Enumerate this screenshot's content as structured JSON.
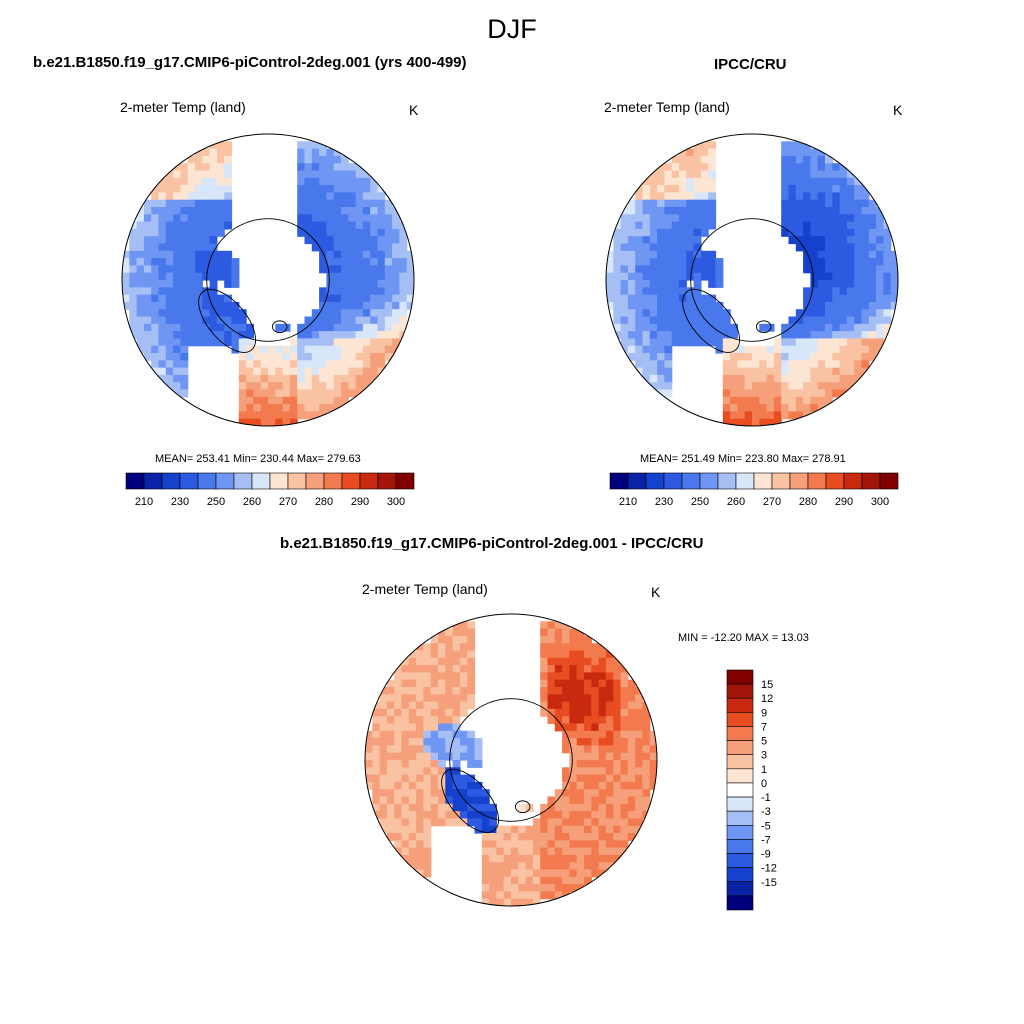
{
  "figure": {
    "season": "DJF",
    "variable": "2-meter Temp (land)",
    "units": "K"
  },
  "panels": {
    "model": {
      "title": "b.e21.B1850.f19_g17.CMIP6-piControl-2deg.001 (yrs 400-499)",
      "stats": "MEAN= 253.41  Min= 230.44  Max= 279.63"
    },
    "obs": {
      "title": "IPCC/CRU",
      "stats": "MEAN= 251.49  Min= 223.80  Max= 278.91"
    },
    "diff": {
      "title": "b.e21.B1850.f19_g17.CMIP6-piControl-2deg.001 - IPCC/CRU",
      "stats": "MIN = -12.20 MAX =  13.03"
    }
  },
  "colors": {
    "abs_scale": [
      "#00007f",
      "#0a23a6",
      "#1542cc",
      "#2c5ae0",
      "#4878eb",
      "#6f96f2",
      "#a5bff5",
      "#d8e6fa",
      "#fde5d3",
      "#f9c2a2",
      "#f5a07a",
      "#f27a4e",
      "#e84d22",
      "#c92a0f",
      "#a21508",
      "#800000"
    ],
    "diff_scale": [
      "#00007f",
      "#0a23a6",
      "#1542cc",
      "#2c5ae0",
      "#4878eb",
      "#6f96f2",
      "#a5bff5",
      "#d8e6fa",
      "#ffffff",
      "#fde5d3",
      "#f9c2a2",
      "#f5a07a",
      "#f27a4e",
      "#e84d22",
      "#c92a0f",
      "#a21508",
      "#800000"
    ]
  },
  "chart_data": [
    {
      "type": "heatmap",
      "title": "b.e21.B1850.f19_g17.CMIP6-piControl-2deg.001 (yrs 400-499)",
      "subtitle": "2-meter Temp (land)",
      "units": "K",
      "projection": "north polar stereographic",
      "mean": 253.41,
      "min": 230.44,
      "max": 279.63,
      "colorbar_ticks": [
        210,
        230,
        250,
        260,
        270,
        280,
        290,
        300
      ],
      "colorbar_range": [
        200,
        305
      ],
      "dominant_values_by_region": {
        "Siberia": 236,
        "Canadian Arctic": 240,
        "Greenland": 238,
        "Alaska": 248,
        "Northern Europe": 268,
        "Central Asia": 258
      }
    },
    {
      "type": "heatmap",
      "title": "IPCC/CRU",
      "subtitle": "2-meter Temp (land)",
      "units": "K",
      "projection": "north polar stereographic",
      "mean": 251.49,
      "min": 223.8,
      "max": 278.91,
      "colorbar_ticks": [
        210,
        230,
        250,
        260,
        270,
        280,
        290,
        300
      ],
      "colorbar_range": [
        200,
        305
      ],
      "dominant_values_by_region": {
        "Siberia": 228,
        "Canadian Arctic": 240,
        "Greenland": 242,
        "Alaska": 250,
        "Northern Europe": 270,
        "Central Asia": 256
      }
    },
    {
      "type": "heatmap",
      "title": "b.e21.B1850.f19_g17.CMIP6-piControl-2deg.001 - IPCC/CRU",
      "subtitle": "2-meter Temp (land)",
      "units": "K",
      "projection": "north polar stereographic",
      "min": -12.2,
      "max": 13.03,
      "colorbar_ticks": [
        15,
        12,
        9,
        7,
        5,
        3,
        1,
        0,
        -1,
        -3,
        -5,
        -7,
        -9,
        -12,
        -15
      ],
      "dominant_values_by_region": {
        "Eastern Siberia": 13,
        "Central Siberia": 6,
        "Canada": 3,
        "Greenland": -9,
        "Europe": 2,
        "Alaska": 1
      }
    }
  ]
}
